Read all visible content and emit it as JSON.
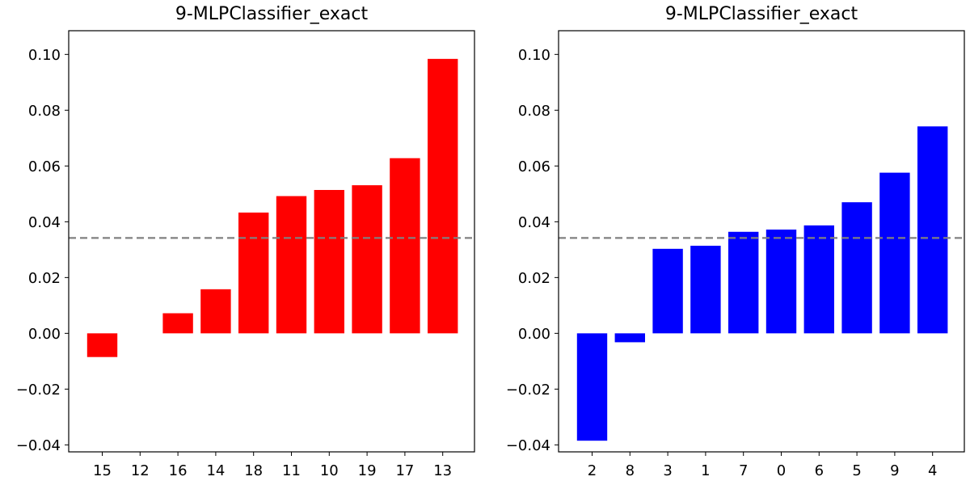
{
  "chart_data": [
    {
      "type": "bar",
      "title": "9-MLPClassifier_exact",
      "xlabel": "",
      "ylabel": "",
      "categories": [
        "15",
        "12",
        "16",
        "14",
        "18",
        "11",
        "10",
        "19",
        "17",
        "13"
      ],
      "values": [
        -0.0085,
        0.0,
        0.0072,
        0.0158,
        0.0433,
        0.0492,
        0.0514,
        0.0531,
        0.0628,
        0.0984
      ],
      "bar_color": "#ff0000",
      "reference_line": 0.0342,
      "reference_line_color": "#808080",
      "ylim": [
        -0.0425,
        0.1085
      ],
      "yticks": [
        "−0.04",
        "−0.02",
        "0.00",
        "0.02",
        "0.04",
        "0.06",
        "0.08",
        "0.10"
      ],
      "ytick_values": [
        -0.04,
        -0.02,
        0.0,
        0.02,
        0.04,
        0.06,
        0.08,
        0.1
      ],
      "grid": false,
      "legend": null
    },
    {
      "type": "bar",
      "title": "9-MLPClassifier_exact",
      "xlabel": "",
      "ylabel": "",
      "categories": [
        "2",
        "8",
        "3",
        "1",
        "7",
        "0",
        "6",
        "5",
        "9",
        "4"
      ],
      "values": [
        -0.0385,
        -0.0032,
        0.0303,
        0.0314,
        0.0364,
        0.0372,
        0.0387,
        0.047,
        0.0576,
        0.0742
      ],
      "bar_color": "#0000ff",
      "reference_line": 0.0342,
      "reference_line_color": "#808080",
      "ylim": [
        -0.0425,
        0.1085
      ],
      "yticks": [
        "−0.04",
        "−0.02",
        "0.00",
        "0.02",
        "0.04",
        "0.06",
        "0.08",
        "0.10"
      ],
      "ytick_values": [
        -0.04,
        -0.02,
        0.0,
        0.02,
        0.04,
        0.06,
        0.08,
        0.1
      ],
      "grid": false,
      "legend": null
    }
  ]
}
